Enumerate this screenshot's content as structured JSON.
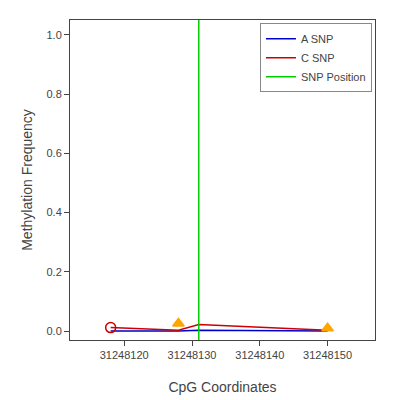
{
  "chart_data": {
    "type": "line",
    "xlabel": "CpG Coordinates",
    "ylabel": "Methylation Frequency",
    "x": [
      31248118,
      31248128,
      31248131,
      31248150
    ],
    "series": [
      {
        "name": "A SNP",
        "color": "#0000cc",
        "values": [
          0.0,
          0.0,
          0.003,
          0.0
        ]
      },
      {
        "name": "C SNP",
        "color": "#cc0000",
        "values": [
          0.012,
          0.003,
          0.022,
          0.003
        ]
      },
      {
        "name": "SNP Position",
        "type": "vline",
        "color": "#00cc00",
        "x": 31248131
      },
      {
        "type": "scatter",
        "marker": "triangle-up",
        "color": "#FFA500",
        "x": [
          31248128,
          31248150
        ],
        "values": [
          0.026,
          0.01
        ]
      },
      {
        "type": "scatter",
        "marker": "circle-open",
        "color": "#cc0000",
        "x": [
          31248118
        ],
        "values": [
          0.012
        ]
      }
    ],
    "xlim": [
      31248112,
      31248157
    ],
    "xticks": [
      31248120,
      31248130,
      31248140,
      31248150
    ],
    "ylim": [
      -0.03,
      1.05
    ],
    "yticks": [
      {
        "value": 0.0,
        "label": "0.0"
      },
      0.2,
      0.4,
      0.6,
      0.8,
      {
        "value": 1.0,
        "label": "1.0"
      }
    ],
    "grid": false,
    "legend": "upper right"
  }
}
